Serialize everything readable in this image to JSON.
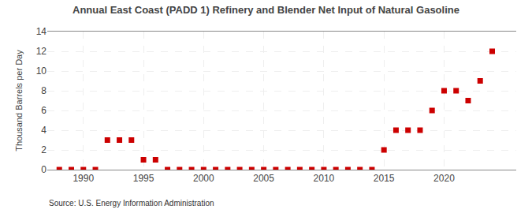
{
  "chart_data": {
    "type": "scatter",
    "title": "Annual East Coast (PADD 1) Refinery and Blender Net Input of Natural Gasoline",
    "ylabel": "Thousand Barrels per Day",
    "annotations": [
      "Source: U.S. Energy Information Administration"
    ],
    "x": [
      1988,
      1989,
      1990,
      1991,
      1992,
      1993,
      1994,
      1995,
      1996,
      1997,
      1998,
      1999,
      2000,
      2001,
      2002,
      2003,
      2004,
      2005,
      2006,
      2007,
      2008,
      2009,
      2010,
      2011,
      2012,
      2013,
      2014,
      2015,
      2016,
      2017,
      2018,
      2019,
      2020,
      2021,
      2022,
      2023,
      2024
    ],
    "values": [
      0,
      0,
      0,
      0,
      3,
      3,
      3,
      1,
      1,
      0,
      0,
      0,
      0,
      0,
      0,
      0,
      0,
      0,
      0,
      0,
      0,
      0,
      0,
      0,
      0,
      0,
      0,
      2,
      4,
      4,
      4,
      6,
      8,
      8,
      7,
      9,
      12
    ],
    "color": "#cc0000",
    "marker": "square",
    "xlim": [
      1987,
      2026
    ],
    "ylim": [
      0,
      14
    ],
    "xticks": [
      1990,
      1995,
      2000,
      2005,
      2010,
      2015,
      2020
    ],
    "yticks": [
      0,
      2,
      4,
      6,
      8,
      10,
      12,
      14
    ],
    "grid": true
  }
}
